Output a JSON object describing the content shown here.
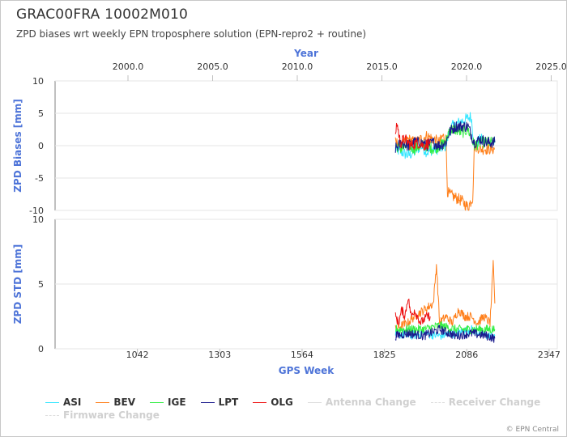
{
  "header": {
    "title": "GRAC00FRA 10002M010",
    "subtitle": "ZPD biases wrt weekly EPN troposphere solution (EPN-repro2 + routine)"
  },
  "copyright": "© EPN Central",
  "legend": [
    {
      "label": "ASI",
      "color": "#33e6ff",
      "dashed": false,
      "muted": false
    },
    {
      "label": "BEV",
      "color": "#ff7f1a",
      "dashed": false,
      "muted": false
    },
    {
      "label": "IGE",
      "color": "#33ee44",
      "dashed": false,
      "muted": false
    },
    {
      "label": "LPT",
      "color": "#1a1a8c",
      "dashed": false,
      "muted": false
    },
    {
      "label": "OLG",
      "color": "#ee1111",
      "dashed": false,
      "muted": false
    },
    {
      "label": "Antenna Change",
      "color": "#dddddd",
      "dashed": false,
      "muted": true
    },
    {
      "label": "Receiver Change",
      "color": "#dddddd",
      "dashed": true,
      "muted": true
    },
    {
      "label": "Firmware Change",
      "color": "#dddddd",
      "dashed": true,
      "muted": true
    }
  ],
  "chart_data": [
    {
      "type": "line",
      "name": "biases",
      "ylabel": "ZPD Biases [mm]",
      "ylim": [
        -10,
        10
      ],
      "yticks": [
        "10",
        "5",
        "0",
        "-5",
        "-10"
      ],
      "x2label": "Year",
      "x2ticks": [
        "2000.0",
        "2005.0",
        "2010.0",
        "2015.0",
        "2020.0",
        "2025.0"
      ],
      "grid": true,
      "series": [
        {
          "name": "ASI",
          "color": "#33e6ff",
          "x": [
            1860,
            1880,
            1900,
            1920,
            1940,
            1960,
            1980,
            2000,
            2020,
            2030,
            2040,
            2060,
            2080,
            2100,
            2110,
            2130,
            2150,
            2175
          ],
          "y": [
            -0.5,
            -1.0,
            -1.5,
            -1.0,
            0.0,
            -1.0,
            -0.5,
            -0.5,
            0.0,
            2.0,
            3.0,
            3.5,
            4.0,
            4.5,
            0.0,
            1.0,
            0.5,
            0.5
          ]
        },
        {
          "name": "BEV",
          "color": "#ff7f1a",
          "x": [
            1860,
            1880,
            1900,
            1920,
            1940,
            1960,
            1980,
            2000,
            2010,
            2020,
            2025,
            2030,
            2050,
            2070,
            2090,
            2100,
            2105,
            2110,
            2130,
            2150,
            2175
          ],
          "y": [
            0.5,
            0.0,
            1.0,
            0.5,
            1.0,
            1.5,
            1.0,
            0.5,
            1.5,
            1.0,
            -7.0,
            -7.5,
            -8.0,
            -8.5,
            -9.5,
            -8.5,
            -8.0,
            0.0,
            -0.5,
            -0.5,
            -0.5
          ]
        },
        {
          "name": "IGE",
          "color": "#33ee44",
          "x": [
            1860,
            1880,
            1900,
            1920,
            1940,
            1960,
            1980,
            2000,
            2020,
            2030,
            2050,
            2070,
            2090,
            2110,
            2130,
            2150,
            2175
          ],
          "y": [
            0.0,
            -0.5,
            0.0,
            -0.5,
            0.0,
            0.0,
            -0.5,
            0.0,
            0.5,
            2.5,
            2.5,
            2.0,
            2.5,
            0.0,
            0.5,
            0.5,
            0.5
          ]
        },
        {
          "name": "LPT",
          "color": "#1a1a8c",
          "x": [
            1860,
            1880,
            1900,
            1920,
            1940,
            1960,
            1980,
            2000,
            2020,
            2030,
            2050,
            2070,
            2090,
            2110,
            2130,
            2150,
            2175
          ],
          "y": [
            -0.5,
            0.5,
            0.0,
            0.5,
            0.5,
            0.0,
            0.5,
            0.0,
            0.5,
            2.0,
            3.0,
            3.0,
            3.0,
            0.5,
            1.0,
            0.5,
            0.5
          ]
        },
        {
          "name": "OLG",
          "color": "#ee1111",
          "x": [
            1860,
            1865,
            1875,
            1890,
            1910,
            1930,
            1950,
            1970
          ],
          "y": [
            2.0,
            3.5,
            0.5,
            1.0,
            0.0,
            0.5,
            0.0,
            0.5
          ]
        }
      ]
    },
    {
      "type": "line",
      "name": "std",
      "ylabel": "ZPD STD [mm]",
      "xlabel": "GPS Week",
      "ylim": [
        0,
        10
      ],
      "yticks": [
        "10",
        "5",
        "0"
      ],
      "xticks": [
        "1042",
        "1303",
        "1564",
        "1825",
        "2086",
        "2347"
      ],
      "xlim": [
        781,
        2373
      ],
      "grid": true,
      "series": [
        {
          "name": "ASI",
          "color": "#33e6ff",
          "x": [
            1860,
            1900,
            1950,
            2000,
            2050,
            2100,
            2150,
            2175
          ],
          "y": [
            1.2,
            1.0,
            1.2,
            1.0,
            1.2,
            1.5,
            1.0,
            1.0
          ]
        },
        {
          "name": "BEV",
          "color": "#ff7f1a",
          "x": [
            1860,
            1880,
            1900,
            1920,
            1950,
            1980,
            1990,
            2000,
            2020,
            2040,
            2060,
            2080,
            2100,
            2120,
            2140,
            2160,
            2170,
            2175
          ],
          "y": [
            1.5,
            1.8,
            2.0,
            2.5,
            3.0,
            3.5,
            6.5,
            2.0,
            2.5,
            2.0,
            3.0,
            2.5,
            2.5,
            2.0,
            2.5,
            2.0,
            6.5,
            3.5
          ]
        },
        {
          "name": "IGE",
          "color": "#33ee44",
          "x": [
            1860,
            1900,
            1950,
            2000,
            2050,
            2100,
            2150,
            2175
          ],
          "y": [
            1.5,
            1.5,
            1.5,
            1.8,
            1.5,
            1.5,
            1.5,
            1.5
          ]
        },
        {
          "name": "LPT",
          "color": "#1a1a8c",
          "x": [
            1860,
            1900,
            1950,
            2000,
            2050,
            2100,
            2150,
            2175
          ],
          "y": [
            1.0,
            1.2,
            1.0,
            1.5,
            1.0,
            1.2,
            1.0,
            0.8
          ]
        },
        {
          "name": "OLG",
          "color": "#ee1111",
          "x": [
            1860,
            1870,
            1880,
            1890,
            1900,
            1910,
            1920,
            1940,
            1960,
            1970
          ],
          "y": [
            2.5,
            2.0,
            3.0,
            2.5,
            4.0,
            2.5,
            3.0,
            2.0,
            2.5,
            2.5
          ]
        }
      ]
    }
  ]
}
